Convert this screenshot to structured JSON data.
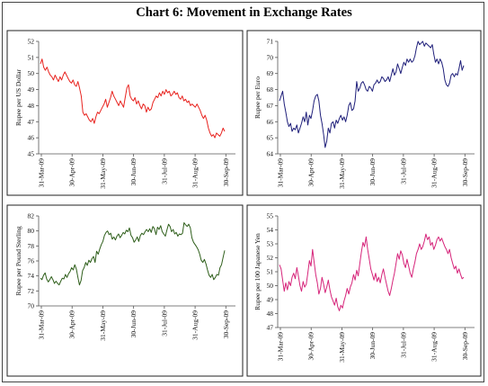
{
  "title": "Chart 6: Movement in Exchange Rates",
  "chart_data": [
    {
      "type": "line",
      "ylabel": "Rupee per US Dollar",
      "ylim": [
        45,
        52
      ],
      "yticks": [
        "45",
        "46",
        "47",
        "48",
        "49",
        "50",
        "51",
        "52"
      ],
      "xticks": [
        "31-Mar-09",
        "30-Apr-09",
        "31-May-09",
        "30-Jun-09",
        "31-Jul-09",
        "31-Aug-09",
        "30-Sep-09"
      ],
      "color": "#e8231f",
      "series": [
        {
          "values": [
            50.6,
            50.9,
            50.4,
            50.2,
            50.4,
            50.1,
            49.9,
            49.8,
            49.6,
            49.9,
            49.7,
            49.5,
            49.8,
            49.6,
            49.9,
            50.1,
            49.9,
            49.7,
            49.5,
            49.4,
            49.6,
            49.3,
            49.2,
            49.5,
            49.1,
            48.6,
            47.6,
            47.4,
            47.5,
            47.3,
            47.1,
            47.0,
            47.2,
            46.9,
            47.3,
            47.6,
            47.5,
            47.7,
            47.9,
            48.1,
            48.4,
            47.9,
            48.2,
            48.5,
            48.9,
            48.6,
            48.4,
            48.2,
            48.0,
            48.3,
            48.1,
            47.9,
            48.5,
            49.1,
            49.3,
            48.6,
            48.4,
            48.3,
            48.5,
            48.1,
            48.3,
            48.0,
            47.8,
            48.1,
            48.0,
            47.6,
            47.9,
            47.7,
            47.8,
            48.2,
            48.4,
            48.6,
            48.5,
            48.8,
            48.6,
            48.9,
            48.7,
            49.0,
            48.8,
            48.9,
            48.6,
            48.7,
            48.9,
            48.7,
            48.8,
            48.5,
            48.4,
            48.6,
            48.3,
            48.4,
            48.2,
            48.3,
            48.0,
            48.1,
            48.0,
            47.9,
            48.1,
            47.9,
            47.7,
            47.4,
            47.2,
            47.4,
            47.1,
            46.6,
            46.3,
            46.1,
            46.2,
            46.0,
            46.3,
            46.2,
            46.1,
            46.3,
            46.6,
            46.4
          ]
        }
      ]
    },
    {
      "type": "line",
      "ylabel": "Rupee per Euro",
      "ylim": [
        64,
        71
      ],
      "yticks": [
        "64",
        "65",
        "66",
        "67",
        "68",
        "69",
        "70",
        "71"
      ],
      "xticks": [
        "31-Mar-09",
        "30-Apr-09",
        "31-May-09",
        "30-Jun-09",
        "31-Jul-09",
        "31-Aug-09",
        "30-Sep-09"
      ],
      "color": "#1f1f7a",
      "series": [
        {
          "values": [
            67.3,
            67.6,
            67.9,
            67.1,
            66.6,
            66.0,
            65.7,
            65.9,
            65.4,
            65.6,
            65.5,
            65.8,
            65.3,
            65.6,
            65.9,
            66.3,
            66.0,
            66.6,
            65.8,
            66.4,
            66.2,
            66.7,
            67.3,
            67.6,
            67.7,
            67.3,
            66.4,
            65.9,
            65.2,
            64.4,
            64.8,
            65.6,
            65.3,
            65.9,
            66.0,
            65.6,
            66.1,
            65.9,
            66.2,
            66.4,
            66.1,
            66.3,
            66.0,
            66.4,
            67.0,
            67.2,
            66.7,
            66.8,
            67.3,
            68.5,
            67.9,
            68.1,
            68.4,
            68.5,
            68.3,
            68.0,
            67.9,
            68.2,
            68.1,
            67.9,
            68.3,
            68.4,
            68.6,
            68.4,
            68.5,
            68.8,
            68.7,
            68.5,
            68.6,
            68.8,
            68.5,
            68.9,
            69.3,
            68.9,
            69.1,
            69.6,
            69.3,
            69.0,
            69.4,
            69.7,
            69.5,
            69.9,
            69.7,
            69.9,
            69.7,
            69.8,
            70.1,
            70.6,
            71.0,
            70.8,
            70.9,
            71.0,
            70.7,
            70.9,
            70.8,
            70.7,
            70.6,
            70.8,
            70.2,
            69.7,
            69.9,
            69.6,
            69.9,
            69.7,
            69.3,
            68.6,
            68.3,
            68.2,
            68.4,
            68.9,
            69.0,
            68.8,
            69.0,
            68.9,
            69.3,
            69.8,
            69.2,
            69.5
          ]
        }
      ]
    },
    {
      "type": "line",
      "ylabel": "Rupee per Pound Sterling",
      "ylim": [
        70,
        82
      ],
      "yticks": [
        "70",
        "72",
        "74",
        "76",
        "78",
        "80",
        "82"
      ],
      "xticks": [
        "31-Mar-09",
        "30-Apr-09",
        "31-May-09",
        "30-Jun-09",
        "31-Jul-09",
        "31-Aug-09",
        "30-Sep-09"
      ],
      "color": "#2e5e1a",
      "series": [
        {
          "values": [
            73.7,
            73.5,
            74.1,
            74.4,
            73.6,
            73.2,
            73.5,
            73.9,
            73.5,
            73.0,
            73.3,
            73.0,
            72.8,
            73.3,
            73.7,
            73.6,
            74.2,
            73.8,
            74.3,
            74.6,
            75.1,
            74.8,
            75.5,
            74.9,
            73.8,
            72.8,
            73.4,
            74.7,
            75.1,
            75.8,
            75.4,
            76.1,
            75.8,
            76.3,
            76.6,
            75.8,
            77.3,
            76.9,
            77.6,
            78.2,
            78.6,
            79.4,
            79.8,
            80.0,
            79.5,
            79.7,
            78.9,
            79.2,
            78.8,
            79.3,
            79.6,
            79.1,
            79.4,
            79.8,
            79.6,
            80.1,
            79.9,
            80.4,
            79.4,
            79.1,
            78.5,
            78.8,
            79.2,
            78.6,
            79.4,
            79.7,
            79.5,
            79.9,
            80.2,
            79.9,
            80.3,
            79.8,
            80.6,
            80.3,
            79.5,
            80.5,
            80.2,
            80.7,
            79.9,
            79.6,
            79.3,
            80.1,
            80.9,
            80.6,
            79.9,
            80.2,
            79.6,
            79.8,
            79.3,
            79.6,
            79.5,
            79.7,
            81.1,
            80.8,
            80.6,
            80.9,
            80.4,
            79.1,
            78.5,
            78.2,
            77.9,
            77.5,
            76.9,
            76.1,
            75.8,
            76.2,
            75.6,
            74.8,
            74.1,
            73.8,
            74.2,
            73.5,
            73.8,
            74.2,
            74.1,
            75.1,
            75.5,
            76.5,
            77.4
          ]
        }
      ]
    },
    {
      "type": "line",
      "ylabel": "Rupee per 100 Japanese Yen",
      "ylim": [
        47,
        55
      ],
      "yticks": [
        "47",
        "48",
        "49",
        "50",
        "51",
        "52",
        "53",
        "54",
        "55"
      ],
      "xticks": [
        "31-Mar-09",
        "30-Apr-09",
        "31-May-09",
        "30-Jun-09",
        "31-Jul-09",
        "31-Aug-09",
        "30-Sep-09"
      ],
      "color": "#d6247a",
      "series": [
        {
          "values": [
            51.5,
            51.2,
            50.4,
            49.6,
            50.2,
            49.7,
            50.3,
            50.0,
            50.6,
            50.9,
            50.5,
            51.3,
            50.7,
            50.0,
            49.6,
            50.3,
            49.9,
            50.1,
            50.9,
            51.8,
            51.4,
            52.6,
            51.7,
            50.8,
            50.2,
            49.4,
            49.8,
            50.6,
            50.1,
            49.5,
            49.9,
            50.4,
            49.7,
            49.2,
            48.9,
            48.6,
            49.1,
            48.5,
            48.2,
            48.6,
            48.4,
            48.9,
            49.3,
            49.8,
            49.4,
            49.9,
            50.2,
            50.8,
            50.4,
            51.1,
            50.7,
            51.6,
            52.4,
            53.1,
            52.8,
            53.5,
            52.6,
            51.9,
            51.2,
            50.8,
            50.4,
            50.9,
            50.3,
            50.6,
            50.2,
            50.8,
            51.2,
            50.6,
            50.1,
            49.6,
            49.3,
            49.8,
            50.4,
            50.9,
            51.6,
            52.3,
            51.9,
            52.5,
            52.2,
            51.6,
            51.3,
            51.9,
            51.4,
            50.9,
            50.6,
            51.2,
            51.7,
            52.3,
            52.6,
            53.0,
            52.6,
            52.8,
            53.2,
            53.7,
            53.3,
            53.5,
            52.9,
            53.1,
            52.6,
            52.9,
            53.3,
            53.5,
            53.2,
            53.4,
            53.1,
            52.8,
            52.6,
            52.3,
            52.6,
            52.0,
            51.6,
            51.2,
            51.4,
            50.9,
            51.2,
            50.8,
            50.5,
            50.6
          ]
        }
      ]
    }
  ]
}
